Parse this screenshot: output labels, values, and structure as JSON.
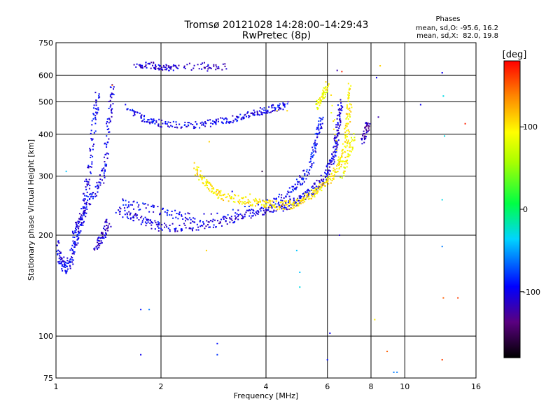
{
  "chart_data": {
    "type": "scatter",
    "title": "Tromsø 20121028 14:28:00–14:29:43",
    "subtitle": "RwPretec (8p)",
    "xlabel": "Frequency [MHz]",
    "ylabel": "Stationary phase Virtual Height [km]",
    "x_scale": "log",
    "y_scale": "log",
    "xlim": [
      1,
      16
    ],
    "ylim": [
      75,
      750
    ],
    "x_ticks": [
      1,
      2,
      4,
      6,
      8,
      10,
      16
    ],
    "y_ticks": [
      75,
      100,
      200,
      300,
      400,
      500,
      600,
      750
    ],
    "grid": true,
    "info": {
      "title": "Phases",
      "line1": "mean, sd,O: -95.6, 16.2",
      "line2": "mean, sd,X:  82.0, 19.8"
    },
    "colorbar": {
      "label": "[deg]",
      "range": [
        -180,
        180
      ],
      "ticks": [
        100,
        0,
        -100
      ],
      "colormap": "rainbow"
    },
    "traces": [
      {
        "name": "",
        "phase": -100,
        "spread": 0.4,
        "points": [
          [
            1.0,
            190
          ],
          [
            1.02,
            175
          ],
          [
            1.04,
            165
          ],
          [
            1.06,
            160
          ],
          [
            1.08,
            162
          ],
          [
            1.1,
            170
          ],
          [
            1.12,
            180
          ],
          [
            1.14,
            190
          ],
          [
            1.16,
            205
          ],
          [
            1.18,
            220
          ],
          [
            1.2,
            240
          ],
          [
            1.22,
            265
          ],
          [
            1.24,
            300
          ],
          [
            1.26,
            350
          ],
          [
            1.28,
            420
          ],
          [
            1.3,
            480
          ],
          [
            1.32,
            530
          ]
        ]
      },
      {
        "name": "",
        "phase": -100,
        "spread": 0.3,
        "points": [
          [
            1.12,
            200
          ],
          [
            1.15,
            215
          ],
          [
            1.2,
            230
          ],
          [
            1.25,
            255
          ],
          [
            1.3,
            270
          ],
          [
            1.35,
            290
          ],
          [
            1.38,
            320
          ],
          [
            1.4,
            380
          ],
          [
            1.42,
            440
          ],
          [
            1.44,
            500
          ],
          [
            1.45,
            560
          ]
        ]
      },
      {
        "name": "",
        "phase": -110,
        "spread": 0.3,
        "points": [
          [
            1.3,
            180
          ],
          [
            1.33,
            190
          ],
          [
            1.36,
            200
          ],
          [
            1.39,
            210
          ],
          [
            1.42,
            220
          ]
        ]
      },
      {
        "name": "",
        "phase": -105,
        "spread": 0.25,
        "points": [
          [
            1.5,
            240
          ],
          [
            1.6,
            230
          ],
          [
            1.7,
            225
          ],
          [
            1.8,
            220
          ],
          [
            1.9,
            215
          ],
          [
            2.0,
            212
          ],
          [
            2.2,
            210
          ],
          [
            2.4,
            212
          ],
          [
            2.6,
            214
          ],
          [
            2.8,
            216
          ],
          [
            3.0,
            220
          ],
          [
            3.2,
            224
          ],
          [
            3.4,
            228
          ],
          [
            3.6,
            232
          ],
          [
            3.8,
            235
          ],
          [
            4.0,
            238
          ],
          [
            4.2,
            240
          ],
          [
            4.4,
            242
          ],
          [
            4.6,
            245
          ],
          [
            4.8,
            250
          ],
          [
            5.0,
            256
          ],
          [
            5.2,
            262
          ],
          [
            5.4,
            270
          ],
          [
            5.6,
            280
          ],
          [
            5.8,
            292
          ],
          [
            6.0,
            305
          ],
          [
            6.1,
            320
          ],
          [
            6.2,
            340
          ],
          [
            6.3,
            360
          ],
          [
            6.35,
            380
          ],
          [
            6.4,
            400
          ],
          [
            6.45,
            430
          ],
          [
            6.5,
            460
          ],
          [
            6.55,
            500
          ]
        ]
      },
      {
        "name": "",
        "phase": -95,
        "spread": 0.25,
        "points": [
          [
            1.55,
            250
          ],
          [
            1.7,
            245
          ],
          [
            1.9,
            238
          ],
          [
            2.1,
            232
          ],
          [
            2.3,
            228
          ],
          [
            2.5,
            225
          ],
          [
            4.2,
            250
          ],
          [
            4.5,
            262
          ],
          [
            4.8,
            275
          ],
          [
            5.0,
            288
          ],
          [
            5.2,
            305
          ],
          [
            5.4,
            330
          ],
          [
            5.5,
            360
          ],
          [
            5.6,
            390
          ],
          [
            5.7,
            420
          ],
          [
            5.8,
            450
          ]
        ]
      },
      {
        "name": "",
        "phase": -100,
        "spread": 0.2,
        "points": [
          [
            1.6,
            480
          ],
          [
            1.7,
            460
          ],
          [
            1.8,
            445
          ],
          [
            1.9,
            435
          ],
          [
            2.0,
            430
          ],
          [
            2.2,
            425
          ],
          [
            2.4,
            425
          ],
          [
            2.6,
            428
          ],
          [
            2.8,
            432
          ],
          [
            3.0,
            438
          ],
          [
            3.2,
            444
          ],
          [
            3.4,
            450
          ],
          [
            3.6,
            458
          ],
          [
            3.8,
            465
          ],
          [
            4.0,
            472
          ],
          [
            4.2,
            478
          ],
          [
            4.4,
            484
          ],
          [
            4.6,
            490
          ]
        ]
      },
      {
        "name": "",
        "phase": -110,
        "spread": 0.2,
        "points": [
          [
            1.7,
            640
          ],
          [
            1.8,
            645
          ],
          [
            1.9,
            642
          ],
          [
            2.0,
            635
          ],
          [
            2.1,
            632
          ],
          [
            2.2,
            628
          ],
          [
            2.6,
            640
          ],
          [
            2.8,
            630
          ],
          [
            3.1,
            640
          ]
        ]
      },
      {
        "name": "",
        "phase": 100,
        "spread": 0.25,
        "points": [
          [
            2.5,
            320
          ],
          [
            2.6,
            300
          ],
          [
            2.7,
            285
          ],
          [
            2.8,
            275
          ],
          [
            2.9,
            268
          ],
          [
            3.0,
            262
          ],
          [
            3.2,
            258
          ],
          [
            3.4,
            255
          ],
          [
            3.6,
            252
          ],
          [
            3.8,
            250
          ],
          [
            4.0,
            248
          ],
          [
            4.2,
            246
          ],
          [
            4.4,
            245
          ],
          [
            4.6,
            246
          ],
          [
            4.8,
            248
          ],
          [
            5.0,
            252
          ],
          [
            5.2,
            258
          ],
          [
            5.4,
            265
          ],
          [
            5.6,
            272
          ],
          [
            5.8,
            280
          ],
          [
            6.0,
            290
          ],
          [
            6.2,
            300
          ],
          [
            6.4,
            315
          ],
          [
            6.6,
            335
          ],
          [
            6.7,
            360
          ],
          [
            6.8,
            390
          ],
          [
            6.85,
            420
          ],
          [
            6.9,
            460
          ],
          [
            6.95,
            500
          ],
          [
            7.0,
            560
          ]
        ]
      },
      {
        "name": "",
        "phase": 90,
        "spread": 0.2,
        "points": [
          [
            5.6,
            480
          ],
          [
            5.7,
            500
          ],
          [
            5.8,
            520
          ],
          [
            5.9,
            540
          ],
          [
            6.0,
            560
          ],
          [
            6.6,
            300
          ],
          [
            6.8,
            330
          ],
          [
            7.0,
            360
          ],
          [
            7.1,
            400
          ]
        ]
      },
      {
        "name": "",
        "phase": -120,
        "spread": 0.15,
        "points": [
          [
            7.6,
            380
          ],
          [
            7.7,
            400
          ],
          [
            7.8,
            420
          ],
          [
            7.85,
            440
          ]
        ]
      }
    ],
    "scatter_points": [
      {
        "x": 1.07,
        "y": 310,
        "phase": -40
      },
      {
        "x": 1.45,
        "y": 560,
        "phase": 150
      },
      {
        "x": 1.75,
        "y": 120,
        "phase": -90
      },
      {
        "x": 1.85,
        "y": 120,
        "phase": -60
      },
      {
        "x": 1.75,
        "y": 88,
        "phase": -100
      },
      {
        "x": 2.7,
        "y": 180,
        "phase": 110
      },
      {
        "x": 2.75,
        "y": 380,
        "phase": 110
      },
      {
        "x": 2.9,
        "y": 95,
        "phase": -90
      },
      {
        "x": 2.9,
        "y": 88,
        "phase": -80
      },
      {
        "x": 3.9,
        "y": 310,
        "phase": -160
      },
      {
        "x": 4.9,
        "y": 180,
        "phase": -40
      },
      {
        "x": 5.0,
        "y": 155,
        "phase": -40
      },
      {
        "x": 5.0,
        "y": 140,
        "phase": -30
      },
      {
        "x": 6.1,
        "y": 102,
        "phase": -100
      },
      {
        "x": 6.0,
        "y": 85,
        "phase": -90
      },
      {
        "x": 6.5,
        "y": 200,
        "phase": -110
      },
      {
        "x": 6.6,
        "y": 615,
        "phase": 170
      },
      {
        "x": 6.4,
        "y": 620,
        "phase": -120
      },
      {
        "x": 8.2,
        "y": 112,
        "phase": 100
      },
      {
        "x": 8.3,
        "y": 590,
        "phase": -100
      },
      {
        "x": 8.4,
        "y": 450,
        "phase": -120
      },
      {
        "x": 8.5,
        "y": 640,
        "phase": 110
      },
      {
        "x": 8.9,
        "y": 90,
        "phase": 150
      },
      {
        "x": 9.3,
        "y": 78,
        "phase": -60
      },
      {
        "x": 9.5,
        "y": 78,
        "phase": -60
      },
      {
        "x": 11.1,
        "y": 490,
        "phase": -100
      },
      {
        "x": 12.8,
        "y": 610,
        "phase": -100
      },
      {
        "x": 12.9,
        "y": 520,
        "phase": -30
      },
      {
        "x": 13.0,
        "y": 395,
        "phase": -30
      },
      {
        "x": 12.8,
        "y": 255,
        "phase": -30
      },
      {
        "x": 12.8,
        "y": 185,
        "phase": -60
      },
      {
        "x": 12.9,
        "y": 130,
        "phase": 150
      },
      {
        "x": 12.8,
        "y": 85,
        "phase": 160
      },
      {
        "x": 14.2,
        "y": 130,
        "phase": 160
      },
      {
        "x": 14.9,
        "y": 430,
        "phase": 170
      },
      {
        "x": 4.3,
        "y": 470,
        "phase": 110
      },
      {
        "x": 4.6,
        "y": 470,
        "phase": 110
      },
      {
        "x": 3.6,
        "y": 265,
        "phase": 100
      },
      {
        "x": 3.2,
        "y": 270,
        "phase": -100
      }
    ]
  }
}
